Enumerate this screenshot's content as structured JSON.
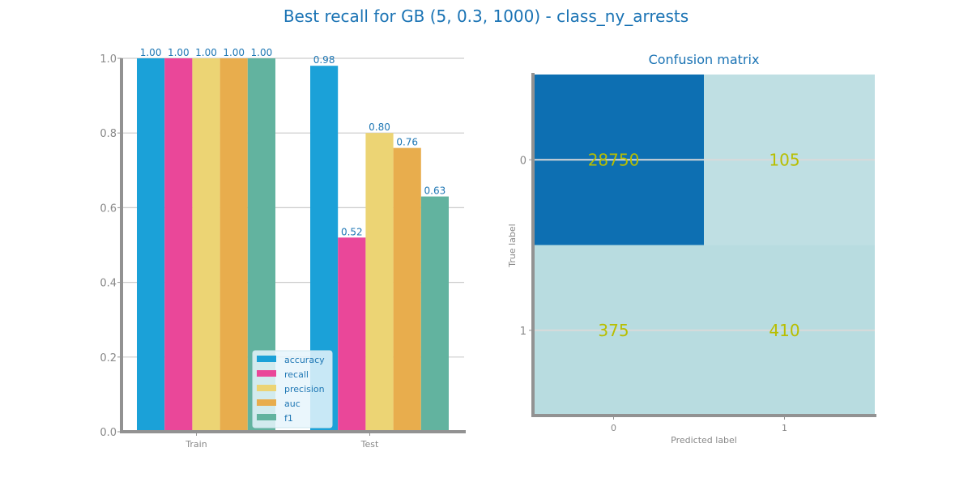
{
  "figure": {
    "title": "Best recall for GB (5, 0.3, 1000) - class_ny_arrests"
  },
  "colors": {
    "title": "#1a73b4",
    "tick": "#888888",
    "axis": "#929292",
    "grid": "#cccccc",
    "value_label": "#1f77b4",
    "cm_high": "#0d6fb2",
    "cm_low": "#bfdfe3",
    "cm_low2": "#b8dce0",
    "cm_text": "#b8be00"
  },
  "chart_data": [
    {
      "type": "bar",
      "title": "",
      "xlabel": "",
      "ylabel": "",
      "categories": [
        "Train",
        "Test"
      ],
      "series": [
        {
          "name": "accuracy",
          "color": "#1ba1d8",
          "values": [
            1.0,
            0.98
          ]
        },
        {
          "name": "recall",
          "color": "#ea4799",
          "values": [
            1.0,
            0.52
          ]
        },
        {
          "name": "precision",
          "color": "#ecd474",
          "values": [
            1.0,
            0.8
          ]
        },
        {
          "name": "auc",
          "color": "#e8ad4d",
          "values": [
            1.0,
            0.76
          ]
        },
        {
          "name": "f1",
          "color": "#62b39f",
          "values": [
            1.0,
            0.63
          ]
        }
      ],
      "value_labels": [
        [
          "1.00",
          "0.98"
        ],
        [
          "1.00",
          "0.52"
        ],
        [
          "1.00",
          "0.80"
        ],
        [
          "1.00",
          "0.76"
        ],
        [
          "1.00",
          "0.63"
        ]
      ],
      "ylim": [
        0,
        1.0
      ],
      "yticks": [
        0.0,
        0.2,
        0.4,
        0.6,
        0.8,
        1.0
      ],
      "ytick_labels": [
        "0.0",
        "0.2",
        "0.4",
        "0.6",
        "0.8",
        "1.0"
      ],
      "grid": true,
      "legend": "lower-center"
    },
    {
      "type": "heatmap",
      "title": "Confusion matrix",
      "xlabel": "Predicted label",
      "ylabel": "True label",
      "x_ticks": [
        "0",
        "1"
      ],
      "y_ticks": [
        "0",
        "1"
      ],
      "matrix": [
        [
          28750,
          105
        ],
        [
          375,
          410
        ]
      ],
      "cell_labels": [
        [
          "28750",
          "105"
        ],
        [
          "375",
          "410"
        ]
      ],
      "legend": "none"
    }
  ]
}
